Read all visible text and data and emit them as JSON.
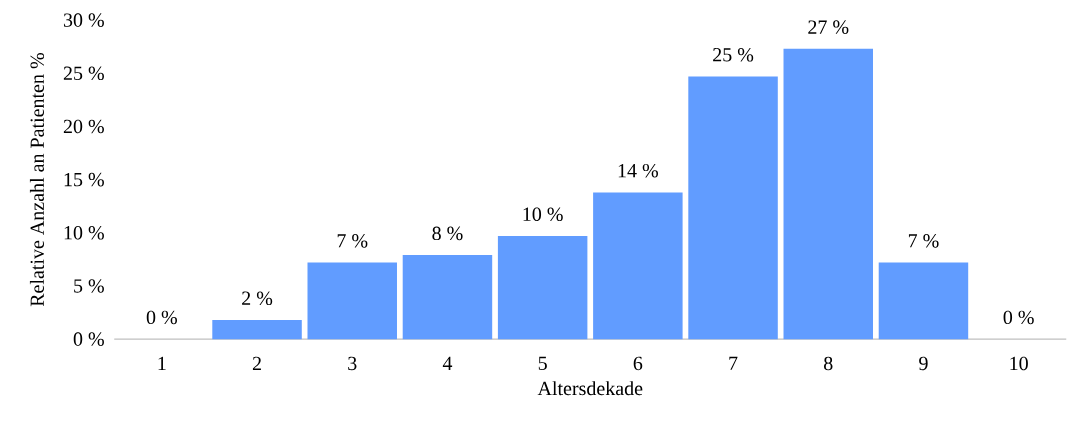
{
  "chart_data": {
    "type": "bar",
    "xlabel": "Altersdekade",
    "ylabel": "Relative Anzahl an Patienten %",
    "categories": [
      "1",
      "2",
      "3",
      "4",
      "5",
      "6",
      "7",
      "8",
      "9",
      "10"
    ],
    "values": [
      0,
      1.8,
      7.2,
      7.9,
      9.7,
      13.8,
      24.7,
      27.3,
      7.2,
      0
    ],
    "value_labels": [
      "0 %",
      "2 %",
      "7 %",
      "8 %",
      "10 %",
      "14 %",
      "25 %",
      "27 %",
      "7 %",
      "0 %"
    ],
    "color": "#619cff",
    "ylim": [
      0,
      30
    ],
    "yticks": [
      {
        "value": 0,
        "label": "0 %"
      },
      {
        "value": 5,
        "label": "5 %"
      },
      {
        "value": 10,
        "label": "10 %"
      },
      {
        "value": 15,
        "label": "15 %"
      },
      {
        "value": 20,
        "label": "20 %"
      },
      {
        "value": 25,
        "label": "25 %"
      },
      {
        "value": 30,
        "label": "30 %"
      }
    ],
    "grid": false
  }
}
